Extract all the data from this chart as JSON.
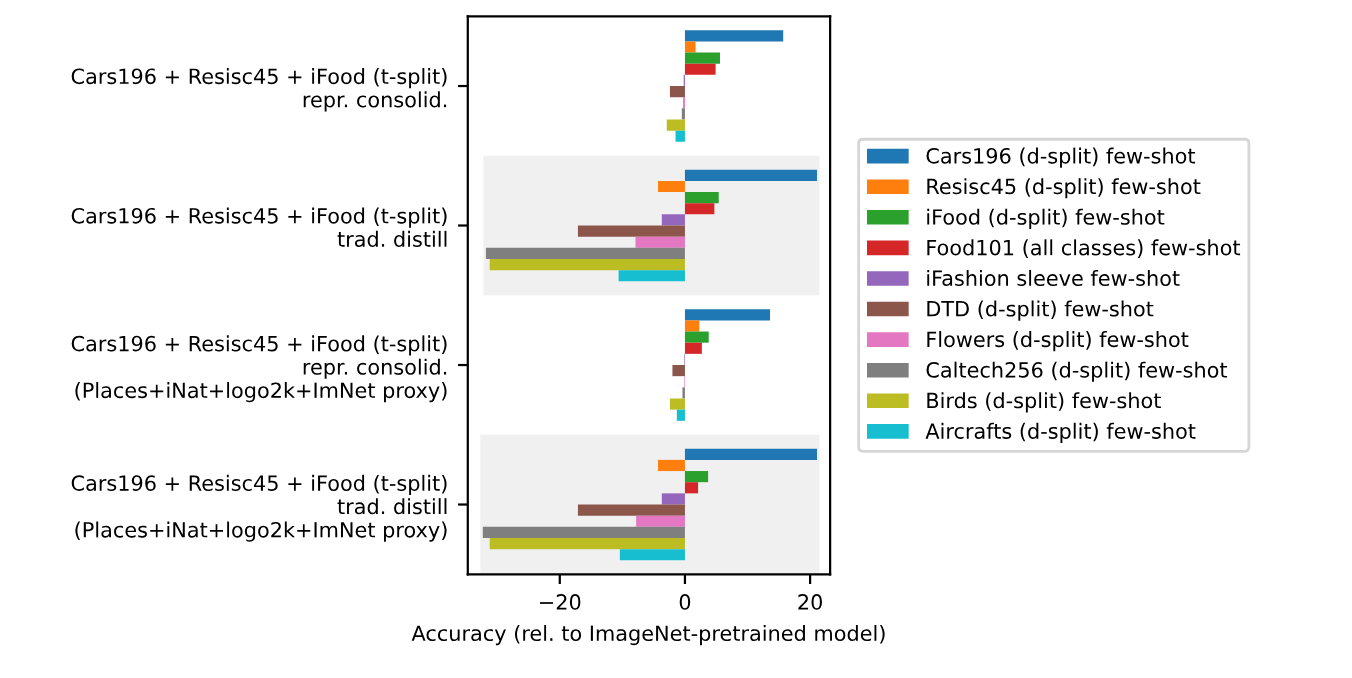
{
  "chart_data": {
    "type": "bar",
    "orientation": "horizontal",
    "xlabel": "Accuracy (rel. to ImageNet-pretrained model)",
    "categories": [
      "Cars196 + Resisc45 + iFood (t-split)\nrepr. consolid.",
      "Cars196 + Resisc45 + iFood (t-split)\ntrad. distill",
      "Cars196 + Resisc45 + iFood (t-split)\nrepr. consolid.\n(Places+iNat+logo2k+ImNet proxy)",
      "Cars196 + Resisc45 + iFood (t-split)\ntrad. distill\n(Places+iNat+logo2k+ImNet proxy)"
    ],
    "series": [
      {
        "name": "Cars196 (d-split) few-shot",
        "color": "#1f77b4",
        "values": [
          15.7,
          21.1,
          13.6,
          21.1
        ]
      },
      {
        "name": "Resisc45 (d-split) few-shot",
        "color": "#ff7f0e",
        "values": [
          1.7,
          -4.3,
          2.3,
          -4.3
        ]
      },
      {
        "name": "iFood (d-split) few-shot",
        "color": "#2ca02c",
        "values": [
          5.6,
          5.4,
          3.8,
          3.7
        ]
      },
      {
        "name": "Food101 (all classes) few-shot",
        "color": "#d62728",
        "values": [
          4.9,
          4.7,
          2.7,
          2.1
        ]
      },
      {
        "name": "iFashion sleeve few-shot",
        "color": "#9467bd",
        "values": [
          -0.2,
          -3.7,
          -0.1,
          -3.7
        ]
      },
      {
        "name": "DTD (d-split) few-shot",
        "color": "#8c564b",
        "values": [
          -2.4,
          -17.1,
          -2.0,
          -17.1
        ]
      },
      {
        "name": "Flowers (d-split) few-shot",
        "color": "#e377c2",
        "values": [
          -0.3,
          -7.9,
          -0.1,
          -7.8
        ]
      },
      {
        "name": "Caltech256 (d-split) few-shot",
        "color": "#7f7f7f",
        "values": [
          -0.5,
          -31.8,
          -0.4,
          -32.3
        ]
      },
      {
        "name": "Birds (d-split) few-shot",
        "color": "#bcbd22",
        "values": [
          -2.9,
          -31.2,
          -2.4,
          -31.2
        ]
      },
      {
        "name": "Aircrafts (d-split) few-shot",
        "color": "#17becf",
        "values": [
          -1.5,
          -10.6,
          -1.3,
          -10.4
        ]
      }
    ],
    "xlim": [
      -34.7,
      23.2
    ],
    "xticks": [
      {
        "value": -20,
        "label": "−20"
      },
      0,
      20
    ],
    "legend": "right",
    "grid": false
  }
}
